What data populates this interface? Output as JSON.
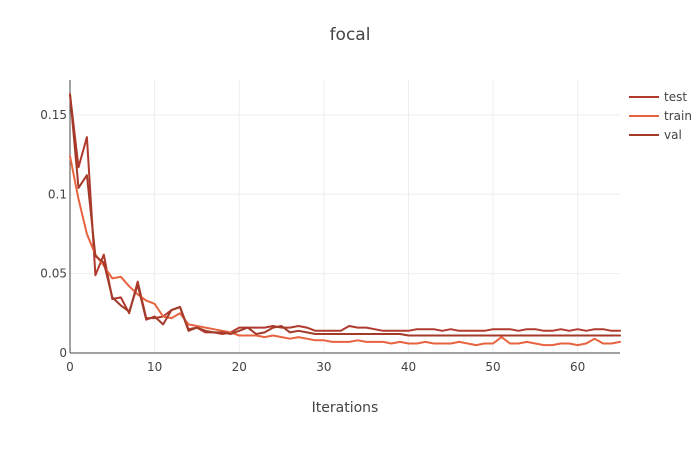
{
  "chart_data": {
    "type": "line",
    "title": "focal",
    "xlabel": "Iterations",
    "ylabel": "",
    "xlim": [
      0,
      65
    ],
    "ylim": [
      0,
      0.172
    ],
    "x_ticks": [
      0,
      10,
      20,
      30,
      40,
      50,
      60
    ],
    "x_tick_labels": [
      "0",
      "10",
      "20",
      "30",
      "40",
      "50",
      "60"
    ],
    "y_ticks": [
      0,
      0.05,
      0.1,
      0.15
    ],
    "y_tick_labels": [
      "0",
      "0.05",
      "0.1",
      "0.15"
    ],
    "grid": true,
    "legend_position": "top-right",
    "series": [
      {
        "name": "test",
        "color": "#b03a2e",
        "x": [
          0,
          1,
          2,
          3,
          4,
          5,
          6,
          7,
          8,
          9,
          10,
          11,
          12,
          13,
          14,
          15,
          16,
          17,
          18,
          19,
          20,
          21,
          22,
          23,
          24,
          25,
          26,
          27,
          28,
          29,
          30,
          31,
          32,
          33,
          34,
          35,
          36,
          37,
          38,
          39,
          40,
          41,
          42,
          43,
          44,
          45,
          46,
          47,
          48,
          49,
          50,
          51,
          52,
          53,
          54,
          55,
          56,
          57,
          58,
          59,
          60,
          61,
          62,
          63,
          64,
          65
        ],
        "values": [
          0.163,
          0.117,
          0.136,
          0.049,
          0.062,
          0.034,
          0.035,
          0.025,
          0.045,
          0.022,
          0.022,
          0.023,
          0.027,
          0.029,
          0.015,
          0.016,
          0.013,
          0.013,
          0.012,
          0.013,
          0.016,
          0.016,
          0.016,
          0.016,
          0.017,
          0.016,
          0.016,
          0.017,
          0.016,
          0.014,
          0.014,
          0.014,
          0.014,
          0.017,
          0.016,
          0.016,
          0.015,
          0.014,
          0.014,
          0.014,
          0.014,
          0.015,
          0.015,
          0.015,
          0.014,
          0.015,
          0.014,
          0.014,
          0.014,
          0.014,
          0.015,
          0.015,
          0.015,
          0.014,
          0.015,
          0.015,
          0.014,
          0.014,
          0.015,
          0.014,
          0.015,
          0.014,
          0.015,
          0.015,
          0.014,
          0.014
        ]
      },
      {
        "name": "train",
        "color": "#e8633f",
        "x": [
          0,
          1,
          2,
          3,
          4,
          5,
          6,
          7,
          8,
          9,
          10,
          11,
          12,
          13,
          14,
          15,
          16,
          17,
          18,
          19,
          20,
          21,
          22,
          23,
          24,
          25,
          26,
          27,
          28,
          29,
          30,
          31,
          32,
          33,
          34,
          35,
          36,
          37,
          38,
          39,
          40,
          41,
          42,
          43,
          44,
          45,
          46,
          47,
          48,
          49,
          50,
          51,
          52,
          53,
          54,
          55,
          56,
          57,
          58,
          59,
          60,
          61,
          62,
          63,
          64,
          65
        ],
        "values": [
          0.124,
          0.097,
          0.075,
          0.062,
          0.055,
          0.047,
          0.048,
          0.042,
          0.037,
          0.033,
          0.031,
          0.023,
          0.022,
          0.025,
          0.018,
          0.017,
          0.016,
          0.015,
          0.014,
          0.013,
          0.011,
          0.011,
          0.011,
          0.01,
          0.011,
          0.01,
          0.009,
          0.01,
          0.009,
          0.008,
          0.008,
          0.007,
          0.007,
          0.007,
          0.008,
          0.007,
          0.007,
          0.007,
          0.006,
          0.007,
          0.006,
          0.006,
          0.007,
          0.006,
          0.006,
          0.006,
          0.007,
          0.006,
          0.005,
          0.006,
          0.006,
          0.01,
          0.006,
          0.006,
          0.007,
          0.006,
          0.005,
          0.005,
          0.006,
          0.006,
          0.005,
          0.006,
          0.009,
          0.006,
          0.006,
          0.007
        ]
      },
      {
        "name": "val",
        "color": "#a33a2a",
        "x": [
          0,
          1,
          2,
          3,
          4,
          5,
          6,
          7,
          8,
          9,
          10,
          11,
          12,
          13,
          14,
          15,
          16,
          17,
          18,
          19,
          20,
          21,
          22,
          23,
          24,
          25,
          26,
          27,
          28,
          29,
          30,
          31,
          32,
          33,
          34,
          35,
          36,
          37,
          38,
          39,
          40,
          41,
          42,
          43,
          44,
          45,
          46,
          47,
          48,
          49,
          50,
          51,
          52,
          53,
          54,
          55,
          56,
          57,
          58,
          59,
          60,
          61,
          62,
          63,
          64,
          65
        ],
        "values": [
          0.163,
          0.104,
          0.112,
          0.061,
          0.057,
          0.035,
          0.03,
          0.026,
          0.043,
          0.021,
          0.023,
          0.018,
          0.027,
          0.029,
          0.014,
          0.016,
          0.014,
          0.013,
          0.013,
          0.012,
          0.014,
          0.016,
          0.012,
          0.013,
          0.016,
          0.017,
          0.013,
          0.014,
          0.013,
          0.012,
          0.012,
          0.012,
          0.012,
          0.012,
          0.012,
          0.012,
          0.012,
          0.012,
          0.012,
          0.012,
          0.011,
          0.011,
          0.011,
          0.011,
          0.011,
          0.011,
          0.011,
          0.011,
          0.011,
          0.011,
          0.011,
          0.011,
          0.011,
          0.011,
          0.011,
          0.011,
          0.011,
          0.011,
          0.011,
          0.011,
          0.011,
          0.011,
          0.011,
          0.011,
          0.011,
          0.011
        ]
      }
    ]
  }
}
